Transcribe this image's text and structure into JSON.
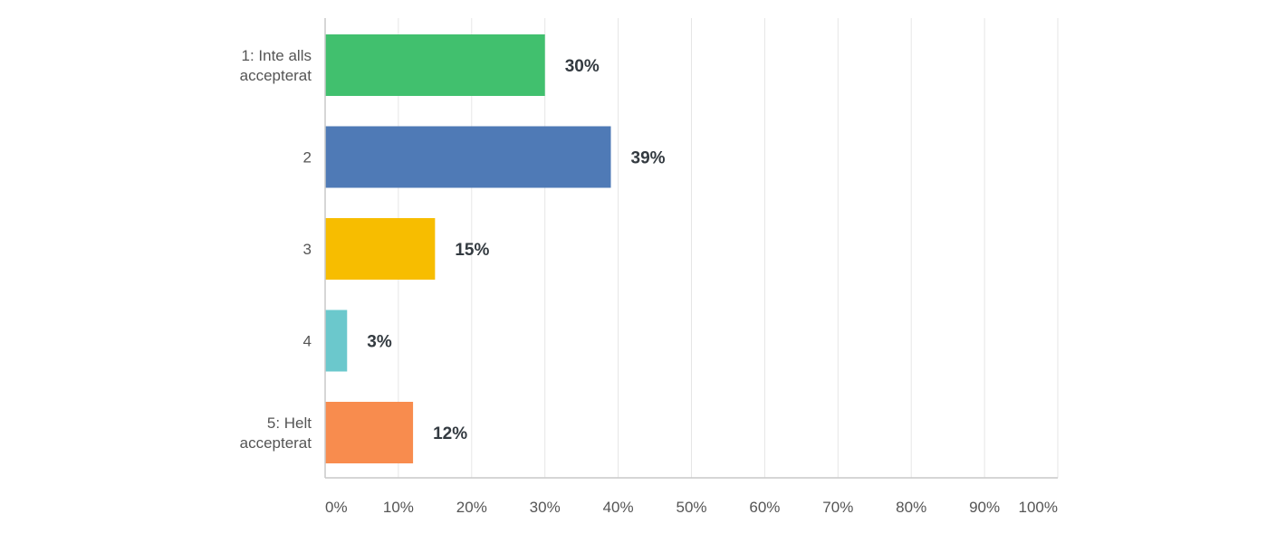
{
  "chart_data": {
    "type": "bar",
    "orientation": "horizontal",
    "title": "",
    "xlabel": "",
    "ylabel": "",
    "categories": [
      [
        "1: Inte alls",
        "accepterat"
      ],
      [
        "2"
      ],
      [
        "3"
      ],
      [
        "4"
      ],
      [
        "5: Helt",
        "accepterat"
      ]
    ],
    "values": [
      30,
      39,
      15,
      3,
      12
    ],
    "value_labels": [
      "30%",
      "39%",
      "15%",
      "3%",
      "12%"
    ],
    "colors": [
      "#41c06e",
      "#4f7ab6",
      "#f7bd00",
      "#6bc8cc",
      "#f88c4e"
    ],
    "xlim": [
      0,
      100
    ],
    "xticks": [
      0,
      10,
      20,
      30,
      40,
      50,
      60,
      70,
      80,
      90,
      100
    ],
    "xtick_labels": [
      "0%",
      "10%",
      "20%",
      "30%",
      "40%",
      "50%",
      "60%",
      "70%",
      "80%",
      "90%",
      "100%"
    ],
    "grid": true,
    "legend": "none"
  }
}
